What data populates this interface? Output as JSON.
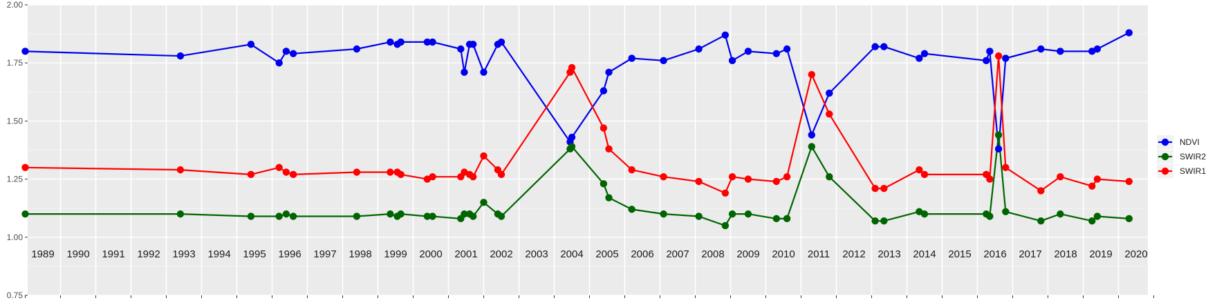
{
  "chart_data": {
    "type": "line",
    "title": "",
    "xlabel": "",
    "ylabel": "",
    "ylim": [
      0.75,
      2.0
    ],
    "y_ticks": [
      "0.75",
      "1.00",
      "1.25",
      "1.50",
      "1.75",
      "2.00"
    ],
    "year_labels": [
      "1989",
      "1990",
      "1991",
      "1992",
      "1993",
      "1994",
      "1995",
      "1996",
      "1997",
      "1998",
      "1999",
      "2000",
      "2001",
      "2002",
      "2003",
      "2004",
      "2005",
      "2006",
      "2007",
      "2008",
      "2009",
      "2010",
      "2011",
      "2012",
      "2013",
      "2014",
      "2015",
      "2016",
      "2017",
      "2018",
      "2019",
      "2020"
    ],
    "grid": true,
    "legend_position": "right",
    "x": [
      1988.5,
      1992.9,
      1994.9,
      1995.7,
      1995.9,
      1996.1,
      1997.9,
      1998.85,
      1999.05,
      1999.15,
      1999.9,
      2000.05,
      2000.85,
      2000.95,
      2001.1,
      2001.2,
      2001.5,
      2001.9,
      2002.0,
      2003.95,
      2004.0,
      2004.9,
      2005.05,
      2005.7,
      2006.6,
      2007.6,
      2008.35,
      2008.55,
      2009.0,
      2009.8,
      2010.1,
      2010.8,
      2011.3,
      2012.6,
      2012.85,
      2013.85,
      2014.0,
      2015.75,
      2015.85,
      2016.1,
      2016.3,
      2017.3,
      2017.85,
      2018.75,
      2018.9,
      2019.8
    ],
    "series": [
      {
        "name": "NDVI",
        "color": "#0000ee",
        "values": [
          1.8,
          1.78,
          1.83,
          1.75,
          1.8,
          1.79,
          1.81,
          1.84,
          1.83,
          1.84,
          1.84,
          1.84,
          1.81,
          1.71,
          1.83,
          1.83,
          1.71,
          1.83,
          1.84,
          1.41,
          1.43,
          1.63,
          1.71,
          1.77,
          1.76,
          1.81,
          1.87,
          1.76,
          1.8,
          1.79,
          1.81,
          1.44,
          1.62,
          1.82,
          1.82,
          1.77,
          1.79,
          1.76,
          1.8,
          1.38,
          1.77,
          1.81,
          1.8,
          1.8,
          1.81,
          1.88
        ]
      },
      {
        "name": "SWIR2",
        "color": "#006400",
        "values": [
          1.1,
          1.1,
          1.09,
          1.09,
          1.1,
          1.09,
          1.09,
          1.1,
          1.09,
          1.1,
          1.09,
          1.09,
          1.08,
          1.1,
          1.1,
          1.09,
          1.15,
          1.1,
          1.09,
          1.38,
          1.39,
          1.23,
          1.17,
          1.12,
          1.1,
          1.09,
          1.05,
          1.1,
          1.1,
          1.08,
          1.08,
          1.39,
          1.26,
          1.07,
          1.07,
          1.11,
          1.1,
          1.1,
          1.09,
          1.44,
          1.11,
          1.07,
          1.1,
          1.07,
          1.09,
          1.08
        ]
      },
      {
        "name": "SWIR1",
        "color": "#ff0000",
        "values": [
          1.3,
          1.29,
          1.27,
          1.3,
          1.28,
          1.27,
          1.28,
          1.28,
          1.28,
          1.27,
          1.25,
          1.26,
          1.26,
          1.28,
          1.27,
          1.26,
          1.35,
          1.29,
          1.27,
          1.71,
          1.73,
          1.47,
          1.38,
          1.29,
          1.26,
          1.24,
          1.19,
          1.26,
          1.25,
          1.24,
          1.26,
          1.7,
          1.53,
          1.21,
          1.21,
          1.29,
          1.27,
          1.27,
          1.25,
          1.78,
          1.3,
          1.2,
          1.26,
          1.22,
          1.25,
          1.24
        ]
      }
    ]
  }
}
